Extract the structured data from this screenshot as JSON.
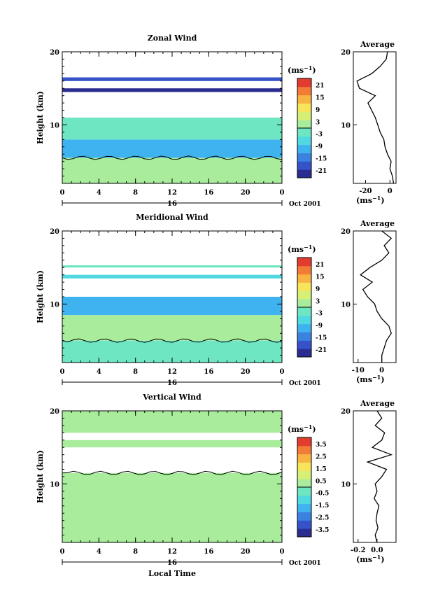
{
  "chart_data": [
    {
      "type": "heatmap",
      "title": "Zonal Wind",
      "xlabel": "",
      "ylabel": "Height (km)",
      "xlim": [
        0,
        24
      ],
      "ylim": [
        2,
        20
      ],
      "x_ticks": [
        "0",
        "4",
        "8",
        "12",
        "16",
        "20",
        "0"
      ],
      "y_ticks": [
        "10",
        "20"
      ],
      "date_bar_label": "16",
      "date_label": "Oct 2001",
      "unit_label": "(ms⁻¹)",
      "colorbar_ticks": [
        "21",
        "15",
        "9",
        "3",
        "-3",
        "-9",
        "-15",
        "-21"
      ],
      "vlim": [
        -24,
        24
      ],
      "bands": [
        {
          "z0": 2.0,
          "z1": 5.5,
          "value": 2
        },
        {
          "z0": 5.5,
          "z1": 8.0,
          "value": -9
        },
        {
          "z0": 8.0,
          "z1": 11.0,
          "value": -4
        },
        {
          "z0": 16.0,
          "z1": 16.5,
          "value": -20
        },
        {
          "z0": 14.5,
          "z1": 15.0,
          "value": -22
        }
      ],
      "average": {
        "title": "Average",
        "xlabel": "(ms⁻¹)",
        "xlim": [
          -30,
          5
        ],
        "x_ticks": [
          "-20",
          "0"
        ],
        "y_ticks": [
          "10",
          "20"
        ],
        "profile": [
          [
            3,
            2
          ],
          [
            2,
            3
          ],
          [
            0,
            4
          ],
          [
            1,
            5
          ],
          [
            -2,
            6
          ],
          [
            -4,
            7
          ],
          [
            -5,
            8
          ],
          [
            -8,
            9
          ],
          [
            -10,
            10
          ],
          [
            -12,
            11
          ],
          [
            -15,
            12
          ],
          [
            -18,
            13
          ],
          [
            -12,
            14
          ],
          [
            -25,
            15
          ],
          [
            -27,
            16
          ],
          [
            -15,
            17
          ],
          [
            -8,
            18
          ],
          [
            -3,
            19
          ],
          [
            -2,
            20
          ]
        ]
      }
    },
    {
      "type": "heatmap",
      "title": "Meridional Wind",
      "xlabel": "",
      "ylabel": "Height (km)",
      "xlim": [
        0,
        24
      ],
      "ylim": [
        2,
        20
      ],
      "x_ticks": [
        "0",
        "4",
        "8",
        "12",
        "16",
        "20",
        "0"
      ],
      "y_ticks": [
        "10",
        "20"
      ],
      "date_bar_label": "16",
      "date_label": "Oct 2001",
      "unit_label": "(ms⁻¹)",
      "colorbar_ticks": [
        "21",
        "15",
        "9",
        "3",
        "-3",
        "-9",
        "-15",
        "-21"
      ],
      "vlim": [
        -24,
        24
      ],
      "bands": [
        {
          "z0": 2.0,
          "z1": 5.0,
          "value": -2
        },
        {
          "z0": 5.0,
          "z1": 8.5,
          "value": 3
        },
        {
          "z0": 8.5,
          "z1": 11.0,
          "value": -9
        },
        {
          "z0": 13.5,
          "z1": 14.0,
          "value": -6
        },
        {
          "z0": 15.0,
          "z1": 15.3,
          "value": -3
        }
      ],
      "average": {
        "title": "Average",
        "xlabel": "(ms⁻¹)",
        "xlim": [
          -12,
          6
        ],
        "x_ticks": [
          "-10",
          "0"
        ],
        "y_ticks": [
          "10",
          "20"
        ],
        "profile": [
          [
            0,
            2
          ],
          [
            0,
            3
          ],
          [
            1,
            4
          ],
          [
            2,
            5
          ],
          [
            4,
            6
          ],
          [
            3,
            7
          ],
          [
            0,
            8
          ],
          [
            -2,
            9
          ],
          [
            -3,
            10
          ],
          [
            -6,
            11
          ],
          [
            -8,
            12
          ],
          [
            -4,
            13
          ],
          [
            -9,
            14
          ],
          [
            -5,
            15
          ],
          [
            0,
            16
          ],
          [
            3,
            17
          ],
          [
            1,
            18
          ],
          [
            4,
            19
          ],
          [
            0,
            20
          ]
        ]
      }
    },
    {
      "type": "heatmap",
      "title": "Vertical Wind",
      "xlabel": "Local Time",
      "ylabel": "Height (km)",
      "xlim": [
        0,
        24
      ],
      "ylim": [
        2,
        20
      ],
      "x_ticks": [
        "0",
        "4",
        "8",
        "12",
        "16",
        "20",
        "0"
      ],
      "y_ticks": [
        "10",
        "20"
      ],
      "date_bar_label": "16",
      "date_label": "Oct 2001",
      "unit_label": "(ms⁻¹)",
      "colorbar_ticks": [
        "3.5",
        "2.5",
        "1.5",
        "0.5",
        "-0.5",
        "-1.5",
        "-2.5",
        "-3.5"
      ],
      "vlim": [
        -4,
        4
      ],
      "bands": [
        {
          "z0": 2.0,
          "z1": 11.5,
          "value": 0.1
        },
        {
          "z0": 15.0,
          "z1": 16.0,
          "value": 0.2
        },
        {
          "z0": 17.0,
          "z1": 20.0,
          "value": 0.1
        }
      ],
      "average": {
        "title": "Average",
        "xlabel": "(ms⁻¹)",
        "xlim": [
          -0.25,
          0.2
        ],
        "x_ticks": [
          "-0.2",
          "0.0"
        ],
        "y_ticks": [
          "10",
          "20"
        ],
        "profile": [
          [
            0.0,
            2
          ],
          [
            -0.02,
            3
          ],
          [
            0.01,
            4
          ],
          [
            -0.01,
            5
          ],
          [
            0.0,
            6
          ],
          [
            0.02,
            7
          ],
          [
            -0.03,
            8
          ],
          [
            0.0,
            9
          ],
          [
            -0.02,
            10
          ],
          [
            0.05,
            11
          ],
          [
            0.1,
            12
          ],
          [
            -0.1,
            13
          ],
          [
            0.15,
            14
          ],
          [
            -0.05,
            15
          ],
          [
            0.05,
            16
          ],
          [
            0.08,
            17
          ],
          [
            -0.02,
            18
          ],
          [
            0.05,
            19
          ],
          [
            0.0,
            20
          ]
        ]
      }
    }
  ]
}
